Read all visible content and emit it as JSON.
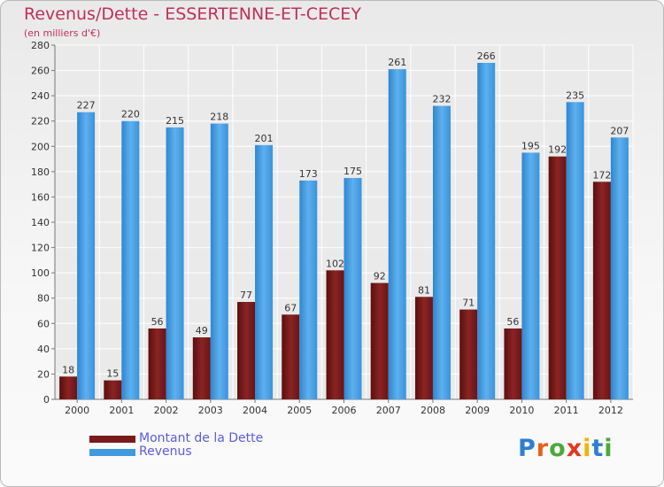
{
  "title": "Revenus/Dette - ESSERTENNE-ET-CECEY",
  "subtitle": "(en milliers d'€)",
  "colors": {
    "dette": "#7a1a1a",
    "revenus": "#3f9ae0",
    "title": "#c0305a"
  },
  "legend": {
    "dette_label": "Montant de la Dette",
    "revenus_label": "Revenus"
  },
  "logo": {
    "letters": [
      "P",
      "r",
      "o",
      "x",
      "i",
      "t",
      "i"
    ],
    "colors": [
      "#2f7fd1",
      "#e85f1c",
      "#4da83b",
      "#e2381f",
      "#f0b400",
      "#2f7fd1",
      "#4da83b"
    ]
  },
  "chart_data": {
    "type": "bar",
    "title": "Revenus/Dette - ESSERTENNE-ET-CECEY",
    "subtitle": "(en milliers d'€)",
    "categories": [
      "2000",
      "2001",
      "2002",
      "2003",
      "2004",
      "2005",
      "2006",
      "2007",
      "2008",
      "2009",
      "2010",
      "2011",
      "2012"
    ],
    "series": [
      {
        "name": "Montant de la Dette",
        "values": [
          18,
          15,
          56,
          49,
          77,
          67,
          102,
          92,
          81,
          71,
          56,
          192,
          172
        ]
      },
      {
        "name": "Revenus",
        "values": [
          227,
          220,
          215,
          218,
          201,
          173,
          175,
          261,
          232,
          266,
          195,
          235,
          207
        ]
      }
    ],
    "ylim": [
      0,
      280
    ],
    "yticks": [
      0,
      20,
      40,
      60,
      80,
      100,
      120,
      140,
      160,
      180,
      200,
      220,
      240,
      260,
      280
    ],
    "grid": true,
    "legend_position": "bottom-left"
  }
}
